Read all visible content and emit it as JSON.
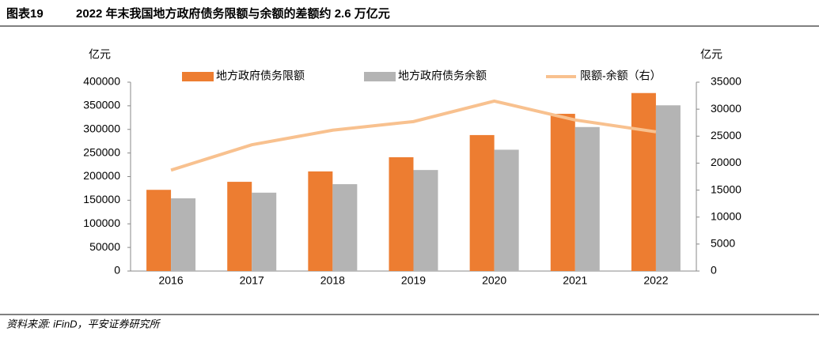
{
  "chart_data": {
    "type": "bar",
    "title_label": "图表19",
    "title": "2022 年末我国地方政府债务限额与余额的差额约 2.6 万亿元",
    "y_label": "亿元",
    "y2_label": "亿元",
    "categories": [
      "2016",
      "2017",
      "2018",
      "2019",
      "2020",
      "2021",
      "2022"
    ],
    "series": [
      {
        "name": "地方政府债务限额",
        "color": "#ED7D31",
        "type": "bar",
        "values": [
          172000,
          189000,
          211000,
          241000,
          288000,
          333000,
          377000
        ]
      },
      {
        "name": "地方政府债务余额",
        "color": "#B4B4B4",
        "type": "bar",
        "values": [
          154000,
          166000,
          184000,
          214000,
          257000,
          305000,
          351000
        ]
      },
      {
        "name": "限额-余额（右）",
        "color": "#F8C18F",
        "type": "line",
        "axis": "y2",
        "values": [
          18700,
          23400,
          26100,
          27700,
          31500,
          28000,
          25800
        ]
      }
    ],
    "ylim": [
      0,
      400000
    ],
    "yticks": [
      0,
      50000,
      100000,
      150000,
      200000,
      250000,
      300000,
      350000,
      400000
    ],
    "y2lim": [
      0,
      35000
    ],
    "y2ticks": [
      0,
      5000,
      10000,
      15000,
      20000,
      25000,
      30000,
      35000
    ],
    "source": "资料来源: iFinD，平安证券研究所"
  }
}
